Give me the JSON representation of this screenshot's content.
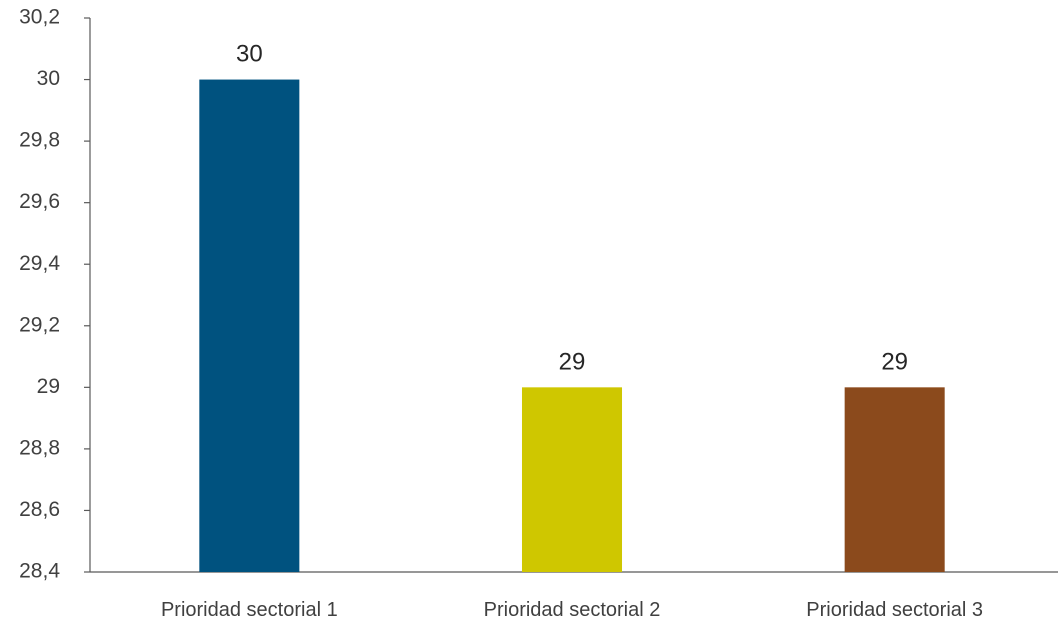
{
  "chart_data": {
    "type": "bar",
    "title": "",
    "xlabel": "",
    "ylabel": "",
    "categories": [
      "Prioridad sectorial 1",
      "Prioridad sectorial 2",
      "Prioridad sectorial 3"
    ],
    "values": [
      30,
      29,
      29
    ],
    "data_labels": [
      "30",
      "29",
      "29"
    ],
    "colors": [
      "#00527F",
      "#CFC700",
      "#8B4A1C"
    ],
    "ylim": [
      28.4,
      30.2
    ],
    "yticks": [
      28.4,
      28.6,
      28.8,
      29,
      29.2,
      29.4,
      29.6,
      29.8,
      30,
      30.2
    ],
    "ytick_labels": [
      "28,4",
      "28,6",
      "28,8",
      "29",
      "29,2",
      "29,4",
      "29,6",
      "29,8",
      "30",
      "30,2"
    ],
    "grid": false,
    "legend": "none"
  }
}
